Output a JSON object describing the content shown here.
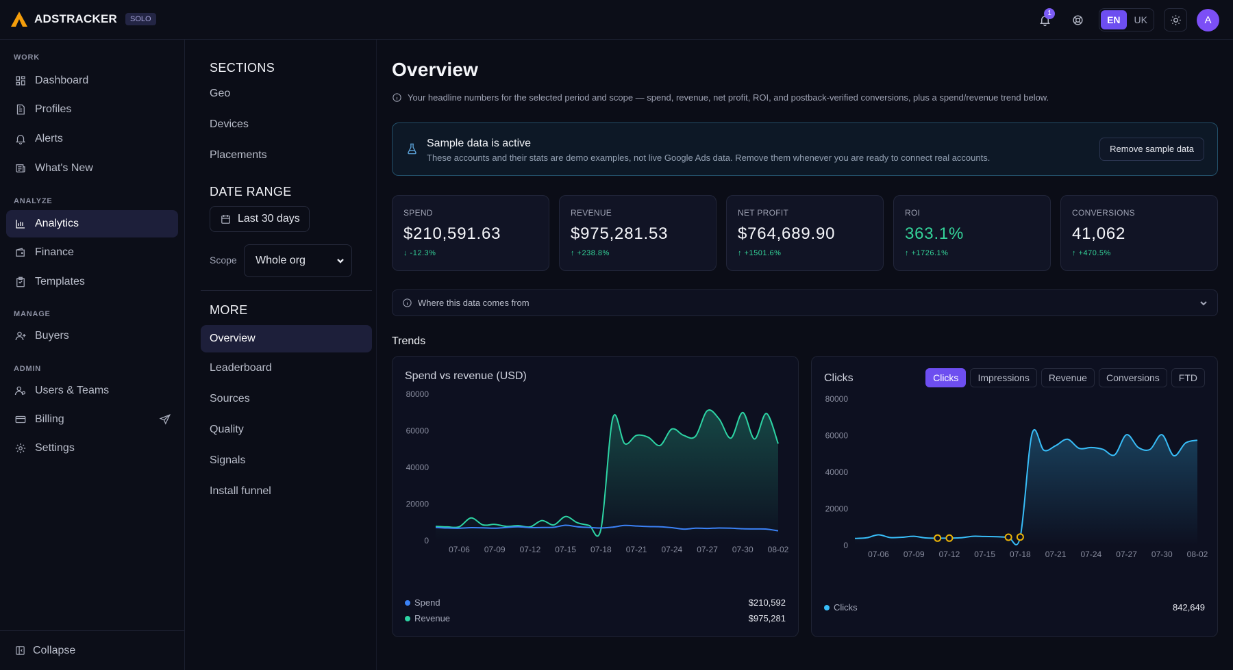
{
  "app": {
    "name": "ADSTRACKER",
    "plan_badge": "SOLO"
  },
  "topbar": {
    "notification_count": "1",
    "languages": [
      "EN",
      "UK"
    ],
    "active_language": "EN",
    "avatar_initial": "A"
  },
  "sidebar": {
    "groups": {
      "work": "WORK",
      "analyze": "ANALYZE",
      "manage": "MANAGE",
      "admin": "ADMIN"
    },
    "items": {
      "dashboard": "Dashboard",
      "profiles": "Profiles",
      "alerts": "Alerts",
      "whats_new": "What's New",
      "analytics": "Analytics",
      "finance": "Finance",
      "templates": "Templates",
      "buyers": "Buyers",
      "users_teams": "Users & Teams",
      "billing": "Billing",
      "settings": "Settings"
    },
    "collapse": "Collapse"
  },
  "sections_panel": {
    "sections_heading": "SECTIONS",
    "sections": [
      "Geo",
      "Devices",
      "Placements"
    ],
    "date_range_heading": "DATE RANGE",
    "date_range_value": "Last 30 days",
    "scope_label": "Scope",
    "scope_value": "Whole org",
    "more_heading": "MORE",
    "more": [
      "Overview",
      "Leaderboard",
      "Sources",
      "Quality",
      "Signals",
      "Install funnel"
    ],
    "active": "Overview"
  },
  "main": {
    "title": "Overview",
    "subtitle": "Your headline numbers for the selected period and scope — spend, revenue, net profit, ROI, and postback-verified conversions, plus a spend/revenue trend below.",
    "banner": {
      "title": "Sample data is active",
      "description": "These accounts and their stats are demo examples, not live Google Ads data. Remove them whenever you are ready to connect real accounts.",
      "button": "Remove sample data"
    },
    "stats": [
      {
        "label": "SPEND",
        "value": "$210,591.63",
        "delta": "↓ -12.3%"
      },
      {
        "label": "REVENUE",
        "value": "$975,281.53",
        "delta": "↑ +238.8%"
      },
      {
        "label": "NET PROFIT",
        "value": "$764,689.90",
        "delta": "↑ +1501.6%"
      },
      {
        "label": "ROI",
        "value": "363.1%",
        "delta": "↑ +1726.1%"
      },
      {
        "label": "CONVERSIONS",
        "value": "41,062",
        "delta": "↑ +470.5%"
      }
    ],
    "source_toggle": "Where this data comes from",
    "trends_title": "Trends",
    "spend_card": {
      "title": "Spend vs revenue (USD)",
      "legend": [
        {
          "name": "Spend",
          "total": "$210,592",
          "color": "#3b82f6"
        },
        {
          "name": "Revenue",
          "total": "$975,281",
          "color": "#2dd4a4"
        }
      ]
    },
    "clicks_card": {
      "title": "Clicks",
      "tabs": [
        "Clicks",
        "Impressions",
        "Revenue",
        "Conversions",
        "FTD"
      ],
      "active_tab": "Clicks",
      "legend": {
        "name": "Clicks",
        "total": "842,649",
        "color": "#38bdf8"
      }
    }
  },
  "colors": {
    "accent": "#6d4ef0",
    "positive": "#34d399",
    "revenue": "#2dd4a4",
    "spend": "#3b82f6",
    "clicks": "#38bdf8",
    "marker": "#eab308"
  },
  "chart_data": [
    {
      "type": "area",
      "title": "Spend vs revenue (USD)",
      "xlabel": "",
      "ylabel": "",
      "ylim": [
        0,
        80000
      ],
      "yticks": [
        "80000",
        "60000",
        "40000",
        "20000",
        "0"
      ],
      "x": [
        "07-04",
        "07-05",
        "07-06",
        "07-07",
        "07-08",
        "07-09",
        "07-10",
        "07-11",
        "07-12",
        "07-13",
        "07-14",
        "07-15",
        "07-16",
        "07-17",
        "07-18",
        "07-19",
        "07-20",
        "07-21",
        "07-22",
        "07-23",
        "07-24",
        "07-25",
        "07-26",
        "07-27",
        "07-28",
        "07-29",
        "07-30",
        "07-31",
        "08-01",
        "08-02"
      ],
      "xticks": [
        "07-06",
        "07-09",
        "07-12",
        "07-15",
        "07-18",
        "07-21",
        "07-24",
        "07-27",
        "07-30",
        "08-02"
      ],
      "series": [
        {
          "name": "Revenue",
          "values": [
            7800,
            7500,
            7600,
            12400,
            8600,
            8900,
            7800,
            8200,
            7500,
            11000,
            8600,
            13200,
            9800,
            8300,
            6500,
            67000,
            53000,
            57500,
            56500,
            52000,
            61000,
            57500,
            57000,
            71000,
            66500,
            56000,
            70000,
            55500,
            69500,
            53000
          ]
        },
        {
          "name": "Spend",
          "values": [
            7200,
            6900,
            6800,
            7100,
            7000,
            6800,
            7200,
            7600,
            7100,
            7200,
            7300,
            8400,
            7600,
            7200,
            6900,
            7400,
            8300,
            8000,
            7700,
            7600,
            7100,
            6300,
            6800,
            6700,
            6900,
            6800,
            6500,
            6400,
            6300,
            5400
          ]
        }
      ]
    },
    {
      "type": "line",
      "title": "Clicks",
      "xlabel": "",
      "ylabel": "",
      "ylim": [
        0,
        80000
      ],
      "yticks": [
        "80000",
        "60000",
        "40000",
        "20000",
        "0"
      ],
      "x": [
        "07-04",
        "07-05",
        "07-06",
        "07-07",
        "07-08",
        "07-09",
        "07-10",
        "07-11",
        "07-12",
        "07-13",
        "07-14",
        "07-15",
        "07-16",
        "07-17",
        "07-18",
        "07-19",
        "07-20",
        "07-21",
        "07-22",
        "07-23",
        "07-24",
        "07-25",
        "07-26",
        "07-27",
        "07-28",
        "07-29",
        "07-30",
        "07-31",
        "08-01",
        "08-02"
      ],
      "xticks": [
        "07-06",
        "07-09",
        "07-12",
        "07-15",
        "07-18",
        "07-21",
        "07-24",
        "07-27",
        "07-30",
        "08-02"
      ],
      "series": [
        {
          "name": "Clicks",
          "values": [
            3800,
            4200,
            5800,
            4300,
            4500,
            5000,
            4100,
            4000,
            4000,
            4200,
            5000,
            4900,
            4800,
            4500,
            4600,
            61000,
            52000,
            54500,
            58000,
            53000,
            53500,
            52500,
            49500,
            60500,
            53500,
            52500,
            60500,
            49000,
            56000,
            57500
          ]
        }
      ],
      "markers_at": [
        "07-11",
        "07-12",
        "07-17",
        "07-18"
      ]
    }
  ]
}
